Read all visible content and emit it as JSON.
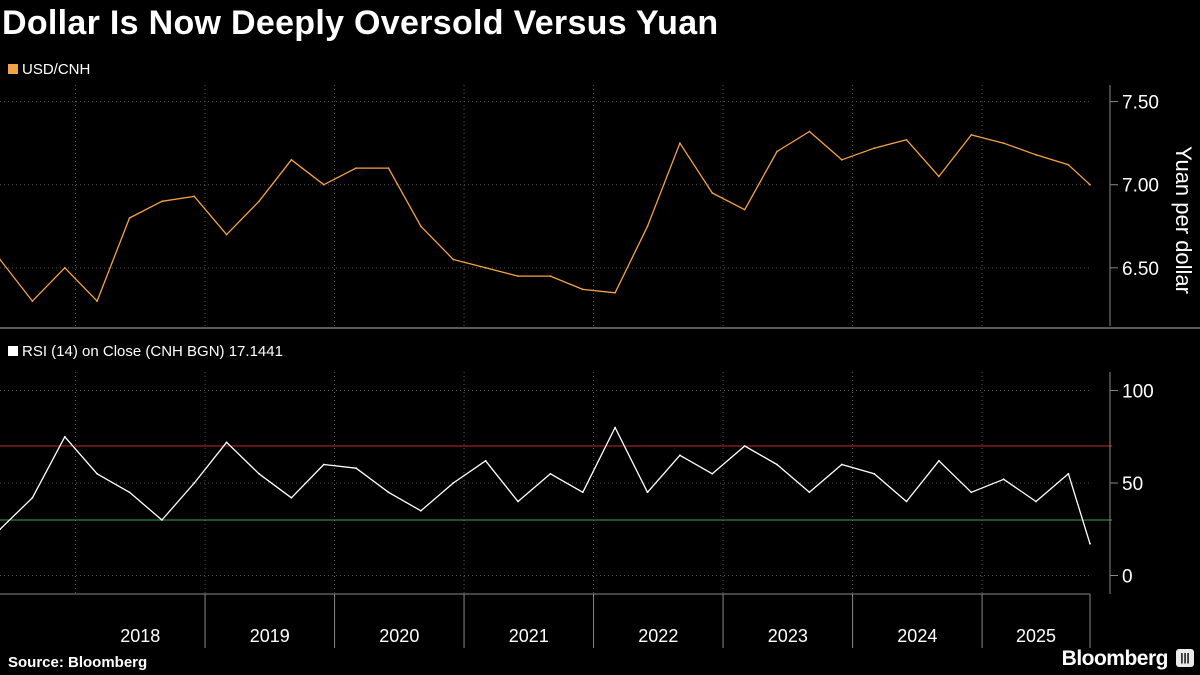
{
  "title": "Dollar Is Now Deeply Oversold Versus Yuan",
  "source": "Source: Bloomberg",
  "brand": "Bloomberg",
  "colors": {
    "usdcnh": "#f4a246",
    "rsi": "#ffffff",
    "overbought": "#c62828",
    "oversold": "#3fa34d"
  },
  "chart_data": [
    {
      "type": "line",
      "panel": "top",
      "series": [
        {
          "name": "USD/CNH",
          "x": [
            "2017-06",
            "2017-09",
            "2017-12",
            "2018-03",
            "2018-06",
            "2018-09",
            "2018-12",
            "2019-03",
            "2019-06",
            "2019-09",
            "2019-12",
            "2020-03",
            "2020-06",
            "2020-09",
            "2020-12",
            "2021-03",
            "2021-06",
            "2021-09",
            "2021-12",
            "2022-03",
            "2022-06",
            "2022-09",
            "2022-12",
            "2023-03",
            "2023-06",
            "2023-09",
            "2023-12",
            "2024-03",
            "2024-06",
            "2024-09",
            "2024-12",
            "2025-03",
            "2025-06",
            "2025-09",
            "2025-11"
          ],
          "values": [
            6.55,
            6.3,
            6.5,
            6.3,
            6.8,
            6.9,
            6.93,
            6.7,
            6.9,
            7.15,
            7.0,
            7.1,
            7.1,
            6.75,
            6.55,
            6.5,
            6.45,
            6.45,
            6.37,
            6.35,
            6.75,
            7.25,
            6.95,
            6.85,
            7.2,
            7.32,
            7.15,
            7.22,
            7.27,
            7.05,
            7.3,
            7.25,
            7.18,
            7.12,
            7.0
          ]
        }
      ],
      "ylabel": "Yuan per dollar",
      "yticks": [
        6.5,
        7.0,
        7.5
      ],
      "ytick_labels": [
        "6.50",
        "7.00",
        "7.50"
      ],
      "ylim": [
        6.15,
        7.6
      ],
      "grid": true
    },
    {
      "type": "line",
      "panel": "bottom",
      "series": [
        {
          "name": "RSI (14)  on Close (CNH BGN) 17.1441",
          "x": [
            "2017-06",
            "2017-09",
            "2017-12",
            "2018-03",
            "2018-06",
            "2018-09",
            "2018-12",
            "2019-03",
            "2019-06",
            "2019-09",
            "2019-12",
            "2020-03",
            "2020-06",
            "2020-09",
            "2020-12",
            "2021-03",
            "2021-06",
            "2021-09",
            "2021-12",
            "2022-03",
            "2022-06",
            "2022-09",
            "2022-12",
            "2023-03",
            "2023-06",
            "2023-09",
            "2023-12",
            "2024-03",
            "2024-06",
            "2024-09",
            "2024-12",
            "2025-03",
            "2025-06",
            "2025-09",
            "2025-11"
          ],
          "values": [
            25,
            42,
            75,
            55,
            45,
            30,
            50,
            72,
            55,
            42,
            60,
            58,
            45,
            35,
            50,
            62,
            40,
            55,
            45,
            80,
            45,
            65,
            55,
            70,
            60,
            45,
            60,
            55,
            40,
            62,
            45,
            52,
            40,
            55,
            17.1441
          ]
        }
      ],
      "reference_lines": [
        70,
        30
      ],
      "yticks": [
        0,
        50,
        100
      ],
      "ytick_labels": [
        "0",
        "50",
        "100"
      ],
      "ylim": [
        -10,
        110
      ],
      "grid": true
    }
  ],
  "xaxis": {
    "ticks": [
      "2018",
      "2019",
      "2020",
      "2021",
      "2022",
      "2023",
      "2024",
      "2025"
    ],
    "start": "2017-06",
    "end": "2025-11"
  }
}
